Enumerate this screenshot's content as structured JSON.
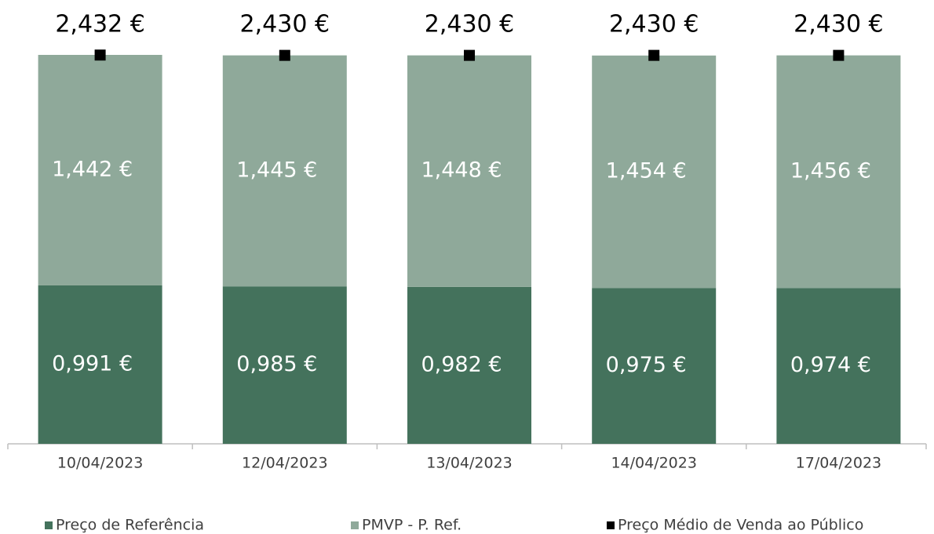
{
  "chart_data": {
    "type": "stacked_bar",
    "categories": [
      "10/04/2023",
      "12/04/2023",
      "13/04/2023",
      "14/04/2023",
      "17/04/2023"
    ],
    "series": [
      {
        "name": "Preço de Referência",
        "color": "#44725c",
        "values": [
          0.991,
          0.985,
          0.982,
          0.975,
          0.974
        ],
        "value_labels": [
          "0,991 €",
          "0,985 €",
          "0,982 €",
          "0,975 €",
          "0,974 €"
        ]
      },
      {
        "name": "PMVP - P. Ref.",
        "color": "#8fa99a",
        "values": [
          1.442,
          1.445,
          1.448,
          1.454,
          1.456
        ],
        "value_labels": [
          "1,442 €",
          "1,445 €",
          "1,448 €",
          "1,454 €",
          "1,456 €"
        ]
      },
      {
        "name": "Preço Médio de Venda ao Público",
        "color": "#000000",
        "type": "marker",
        "values": [
          2.432,
          2.43,
          2.43,
          2.43,
          2.43
        ],
        "value_labels": [
          "2,432 €",
          "2,430 €",
          "2,430 €",
          "2,430 €",
          "2,430 €"
        ]
      }
    ],
    "legend": "bottom"
  }
}
